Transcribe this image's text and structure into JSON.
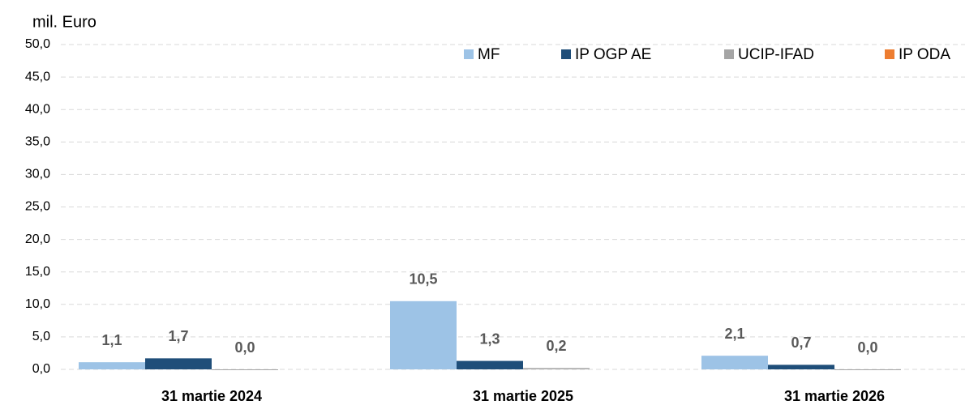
{
  "chart_data": {
    "type": "bar",
    "ylabel": "mil. Euro",
    "categories": [
      "31 martie 2024",
      "31 martie 2025",
      "31 martie 2026"
    ],
    "series": [
      {
        "name": "MF",
        "color": "#9dc3e6",
        "values": [
          1.1,
          10.5,
          2.1
        ],
        "value_labels": [
          "1,1",
          "10,5",
          "2,1"
        ]
      },
      {
        "name": "IP OGP AE",
        "color": "#1f4e79",
        "values": [
          1.7,
          1.3,
          0.7
        ],
        "value_labels": [
          "1,7",
          "1,3",
          "0,7"
        ]
      },
      {
        "name": "UCIP-IFAD",
        "color": "#a5a5a5",
        "values": [
          0.0,
          0.2,
          0.0
        ],
        "value_labels": [
          "0,0",
          "0,2",
          "0,0"
        ]
      },
      {
        "name": "IP ODA",
        "color": "#ed7d31",
        "values": [
          null,
          null,
          null
        ]
      }
    ],
    "ylim": [
      0,
      50
    ],
    "yticks": [
      {
        "value": 0,
        "label": "0,0"
      },
      {
        "value": 5,
        "label": "5,0"
      },
      {
        "value": 10,
        "label": "10,0"
      },
      {
        "value": 15,
        "label": "15,0"
      },
      {
        "value": 20,
        "label": "20,0"
      },
      {
        "value": 25,
        "label": "25,0"
      },
      {
        "value": 30,
        "label": "30,0"
      },
      {
        "value": 35,
        "label": "35,0"
      },
      {
        "value": 40,
        "label": "40,0"
      },
      {
        "value": 45,
        "label": "45,0"
      },
      {
        "value": 50,
        "label": "50,0"
      }
    ],
    "grid": true,
    "legend": "top-right"
  }
}
